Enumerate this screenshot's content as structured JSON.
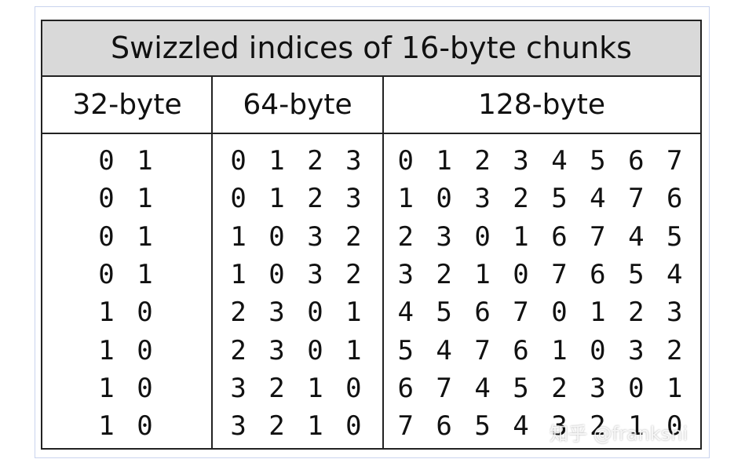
{
  "table": {
    "title": "Swizzled indices of 16-byte chunks",
    "columns": [
      "32-byte",
      "64-byte",
      "128-byte"
    ],
    "rows": [
      [
        "0 1",
        "0 1 2 3",
        "0 1 2 3 4 5 6 7"
      ],
      [
        "0 1",
        "0 1 2 3",
        "1 0 3 2 5 4 7 6"
      ],
      [
        "0 1",
        "1 0 3 2",
        "2 3 0 1 6 7 4 5"
      ],
      [
        "0 1",
        "1 0 3 2",
        "3 2 1 0 7 6 5 4"
      ],
      [
        "1 0",
        "2 3 0 1",
        "4 5 6 7 0 1 2 3"
      ],
      [
        "1 0",
        "2 3 0 1",
        "5 4 7 6 1 0 3 2"
      ],
      [
        "1 0",
        "3 2 1 0",
        "6 7 4 5 2 3 0 1"
      ],
      [
        "1 0",
        "3 2 1 0",
        "7 6 5 4 3 2 1 0"
      ]
    ]
  },
  "watermark": "知乎 @franksni"
}
